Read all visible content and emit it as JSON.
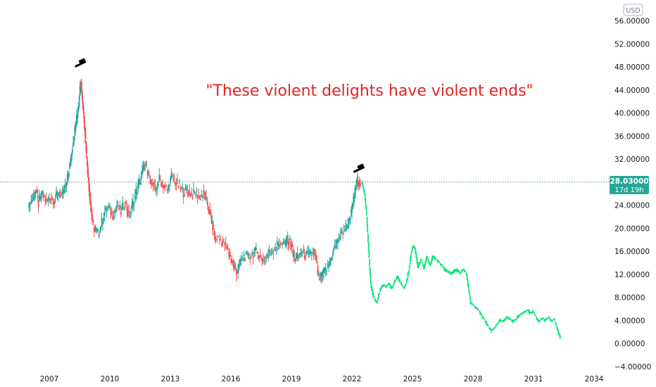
{
  "chart_data": {
    "type": "candlestick",
    "currency_label": "USD",
    "annotation": "\"These violent delights have violent ends\"",
    "y_ticks": [
      "56.00000",
      "52.00000",
      "48.00000",
      "44.00000",
      "40.00000",
      "36.00000",
      "32.00000",
      "28.00000",
      "24.00000",
      "20.00000",
      "16.00000",
      "12.00000",
      "8.00000",
      "4.00000",
      "0.00000",
      "−4.00000"
    ],
    "y_tick_values": [
      56,
      52,
      48,
      44,
      40,
      36,
      32,
      28,
      24,
      20,
      16,
      12,
      8,
      4,
      0,
      -4
    ],
    "x_ticks": [
      "2007",
      "2010",
      "2013",
      "2016",
      "2019",
      "2022",
      "2025",
      "2028",
      "2031",
      "2034"
    ],
    "x_tick_values": [
      2007,
      2010,
      2013,
      2016,
      2019,
      2022,
      2025,
      2028,
      2031,
      2034
    ],
    "xlim": [
      2005.5,
      2034.6
    ],
    "ylim": [
      -5.2,
      58.2
    ],
    "current_price": {
      "value": 28.03,
      "label": "28.03000",
      "countdown": "17d 19h"
    },
    "colors": {
      "up": "#26a69a",
      "down": "#ef5350",
      "projection": "#00e676",
      "price_line": "#26a69a",
      "annotation": "#e02424"
    },
    "markers": [
      {
        "name": "gavel-icon",
        "x": 2008.6,
        "y": 48.5
      },
      {
        "name": "gavel-icon",
        "x": 2022.4,
        "y": 30.2
      }
    ],
    "series": [
      {
        "name": "",
        "kind": "historical",
        "points": [
          [
            2006.0,
            23.2
          ],
          [
            2006.2,
            25.1
          ],
          [
            2006.35,
            26.5
          ],
          [
            2006.5,
            24.3
          ],
          [
            2006.7,
            25.8
          ],
          [
            2006.9,
            24.6
          ],
          [
            2007.1,
            25.4
          ],
          [
            2007.3,
            24.8
          ],
          [
            2007.5,
            26.2
          ],
          [
            2007.7,
            25.5
          ],
          [
            2007.9,
            27.8
          ],
          [
            2008.05,
            30.8
          ],
          [
            2008.15,
            33.5
          ],
          [
            2008.3,
            37.0
          ],
          [
            2008.4,
            39.5
          ],
          [
            2008.5,
            42.5
          ],
          [
            2008.58,
            46.0
          ],
          [
            2008.65,
            43.0
          ],
          [
            2008.75,
            39.0
          ],
          [
            2008.85,
            34.0
          ],
          [
            2008.95,
            29.0
          ],
          [
            2009.05,
            25.0
          ],
          [
            2009.15,
            21.5
          ],
          [
            2009.3,
            19.5
          ],
          [
            2009.45,
            19.0
          ],
          [
            2009.6,
            20.5
          ],
          [
            2009.8,
            22.8
          ],
          [
            2010.0,
            23.5
          ],
          [
            2010.2,
            22.2
          ],
          [
            2010.4,
            24.0
          ],
          [
            2010.6,
            22.8
          ],
          [
            2010.8,
            24.5
          ],
          [
            2011.0,
            22.0
          ],
          [
            2011.2,
            24.3
          ],
          [
            2011.4,
            26.8
          ],
          [
            2011.6,
            29.0
          ],
          [
            2011.75,
            31.0
          ],
          [
            2011.9,
            29.5
          ],
          [
            2012.1,
            28.3
          ],
          [
            2012.3,
            26.5
          ],
          [
            2012.5,
            28.5
          ],
          [
            2012.7,
            27.5
          ],
          [
            2012.9,
            26.5
          ],
          [
            2013.1,
            28.8
          ],
          [
            2013.3,
            28.0
          ],
          [
            2013.5,
            27.0
          ],
          [
            2013.7,
            26.2
          ],
          [
            2013.9,
            26.6
          ],
          [
            2014.1,
            25.8
          ],
          [
            2014.3,
            26.1
          ],
          [
            2014.5,
            25.4
          ],
          [
            2014.7,
            25.9
          ],
          [
            2014.85,
            24.5
          ],
          [
            2015.0,
            22.5
          ],
          [
            2015.1,
            20.8
          ],
          [
            2015.25,
            18.5
          ],
          [
            2015.5,
            18.0
          ],
          [
            2015.7,
            17.5
          ],
          [
            2015.9,
            16.0
          ],
          [
            2016.05,
            14.5
          ],
          [
            2016.2,
            13.0
          ],
          [
            2016.35,
            12.5
          ],
          [
            2016.5,
            14.2
          ],
          [
            2016.7,
            15.2
          ],
          [
            2016.9,
            14.8
          ],
          [
            2017.1,
            15.5
          ],
          [
            2017.3,
            15.9
          ],
          [
            2017.5,
            15.0
          ],
          [
            2017.7,
            14.5
          ],
          [
            2017.9,
            15.5
          ],
          [
            2018.1,
            16.2
          ],
          [
            2018.3,
            16.8
          ],
          [
            2018.5,
            17.5
          ],
          [
            2018.7,
            17.0
          ],
          [
            2018.85,
            18.0
          ],
          [
            2019.0,
            17.5
          ],
          [
            2019.15,
            15.0
          ],
          [
            2019.3,
            14.5
          ],
          [
            2019.5,
            15.8
          ],
          [
            2019.7,
            15.5
          ],
          [
            2019.9,
            15.2
          ],
          [
            2020.1,
            15.6
          ],
          [
            2020.25,
            14.8
          ],
          [
            2020.35,
            11.5
          ],
          [
            2020.5,
            11.2
          ],
          [
            2020.7,
            12.5
          ],
          [
            2020.9,
            13.5
          ],
          [
            2021.1,
            16.0
          ],
          [
            2021.3,
            17.5
          ],
          [
            2021.5,
            19.0
          ],
          [
            2021.7,
            20.0
          ],
          [
            2021.85,
            21.0
          ],
          [
            2022.0,
            22.5
          ],
          [
            2022.1,
            24.8
          ],
          [
            2022.2,
            26.8
          ],
          [
            2022.3,
            28.4
          ],
          [
            2022.45,
            28.0
          ]
        ]
      },
      {
        "name": "",
        "kind": "projection",
        "points": [
          [
            2022.5,
            28.2
          ],
          [
            2022.65,
            26.0
          ],
          [
            2022.75,
            22.0
          ],
          [
            2022.85,
            16.0
          ],
          [
            2022.95,
            10.5
          ],
          [
            2023.1,
            8.0
          ],
          [
            2023.25,
            7.0
          ],
          [
            2023.4,
            9.0
          ],
          [
            2023.55,
            10.2
          ],
          [
            2023.7,
            9.8
          ],
          [
            2023.85,
            10.5
          ],
          [
            2024.0,
            9.5
          ],
          [
            2024.15,
            10.8
          ],
          [
            2024.3,
            11.5
          ],
          [
            2024.45,
            10.5
          ],
          [
            2024.6,
            9.5
          ],
          [
            2024.75,
            11.0
          ],
          [
            2024.85,
            13.0
          ],
          [
            2024.95,
            15.5
          ],
          [
            2025.05,
            17.0
          ],
          [
            2025.15,
            16.5
          ],
          [
            2025.3,
            13.2
          ],
          [
            2025.45,
            14.5
          ],
          [
            2025.6,
            13.0
          ],
          [
            2025.75,
            15.0
          ],
          [
            2025.9,
            13.5
          ],
          [
            2026.05,
            15.2
          ],
          [
            2026.2,
            14.5
          ],
          [
            2026.35,
            14.0
          ],
          [
            2026.5,
            13.5
          ],
          [
            2026.65,
            12.8
          ],
          [
            2026.8,
            12.5
          ],
          [
            2026.95,
            12.0
          ],
          [
            2027.1,
            12.5
          ],
          [
            2027.25,
            12.8
          ],
          [
            2027.4,
            12.2
          ],
          [
            2027.55,
            12.9
          ],
          [
            2027.7,
            12.0
          ],
          [
            2027.8,
            9.5
          ],
          [
            2027.9,
            7.0
          ],
          [
            2028.05,
            6.5
          ],
          [
            2028.2,
            6.2
          ],
          [
            2028.35,
            5.5
          ],
          [
            2028.5,
            4.5
          ],
          [
            2028.65,
            3.8
          ],
          [
            2028.8,
            2.8
          ],
          [
            2028.95,
            2.2
          ],
          [
            2029.1,
            2.8
          ],
          [
            2029.25,
            3.5
          ],
          [
            2029.4,
            4.0
          ],
          [
            2029.55,
            3.8
          ],
          [
            2029.7,
            4.5
          ],
          [
            2029.85,
            4.2
          ],
          [
            2030.0,
            3.8
          ],
          [
            2030.15,
            4.2
          ],
          [
            2030.3,
            4.8
          ],
          [
            2030.45,
            5.2
          ],
          [
            2030.6,
            5.5
          ],
          [
            2030.75,
            5.8
          ],
          [
            2030.85,
            5.2
          ],
          [
            2031.0,
            5.5
          ],
          [
            2031.15,
            4.5
          ],
          [
            2031.3,
            3.8
          ],
          [
            2031.45,
            4.4
          ],
          [
            2031.6,
            4.0
          ],
          [
            2031.75,
            4.5
          ],
          [
            2031.9,
            4.0
          ],
          [
            2032.05,
            4.2
          ],
          [
            2032.2,
            2.5
          ],
          [
            2032.35,
            1.0
          ]
        ]
      }
    ]
  }
}
